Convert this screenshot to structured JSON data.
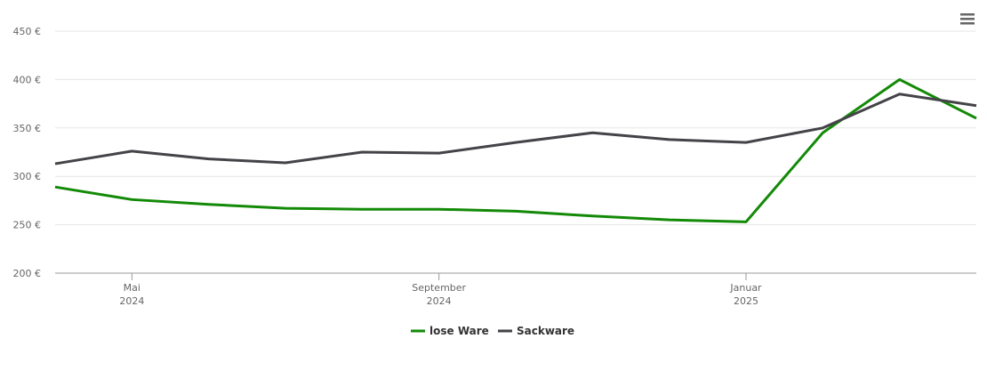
{
  "chart_data": {
    "type": "line",
    "x": [
      "2024-04",
      "2024-05",
      "2024-06",
      "2024-07",
      "2024-08",
      "2024-09",
      "2024-10",
      "2024-11",
      "2024-12",
      "2025-01",
      "2025-02",
      "2025-03",
      "2025-04"
    ],
    "series": [
      {
        "name": "lose Ware",
        "color": "#138a07",
        "values": [
          289,
          276,
          271,
          267,
          266,
          266,
          264,
          259,
          255,
          253,
          345,
          400,
          360
        ]
      },
      {
        "name": "Sackware",
        "color": "#434348",
        "values": [
          313,
          326,
          318,
          314,
          325,
          324,
          335,
          345,
          338,
          335,
          350,
          385,
          373
        ]
      }
    ],
    "xlim": [
      "2024-04",
      "2025-04"
    ],
    "xticks": [
      {
        "value": "2024-05",
        "label": [
          "Mai",
          "2024"
        ]
      },
      {
        "value": "2024-09",
        "label": [
          "September",
          "2024"
        ]
      },
      {
        "value": "2025-01",
        "label": [
          "Januar",
          "2025"
        ]
      }
    ],
    "ylim": [
      200,
      450
    ],
    "yticks": [
      {
        "value": 200,
        "label": "200 €"
      },
      {
        "value": 250,
        "label": "250 €"
      },
      {
        "value": 300,
        "label": "300 €"
      },
      {
        "value": 350,
        "label": "350 €"
      },
      {
        "value": 400,
        "label": "400 €"
      },
      {
        "value": 450,
        "label": "450 €"
      }
    ],
    "grid": true
  }
}
